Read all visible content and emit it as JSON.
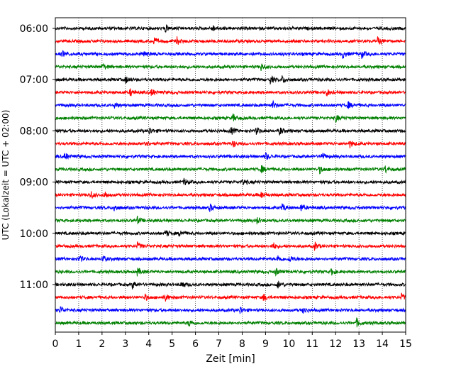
{
  "chart_data": {
    "type": "line",
    "subtype": "helicorder",
    "xlabel": "Zeit  [min]",
    "ylabel": "UTC (Lokalzeit = UTC + 02:00)",
    "xlim": [
      0,
      15
    ],
    "x_ticks": [
      0,
      1,
      2,
      3,
      4,
      5,
      6,
      7,
      8,
      9,
      10,
      11,
      12,
      13,
      14,
      15
    ],
    "x_tick_labels": [
      "0",
      "1",
      "2",
      "3",
      "4",
      "5",
      "6",
      "7",
      "8",
      "9",
      "10",
      "11",
      "12",
      "13",
      "14",
      "15"
    ],
    "x_grid": "dotted vertical",
    "trace_interval_minutes": 15,
    "row_tick_labels": [
      "06:00",
      "07:00",
      "08:00",
      "09:00",
      "10:00",
      "11:00"
    ],
    "colors": [
      "#000000",
      "#ff0000",
      "#0000ff",
      "#008000"
    ],
    "rows": [
      {
        "start": "06:00",
        "color": "#000000",
        "events_min": [
          4.7,
          6.7
        ]
      },
      {
        "start": "06:15",
        "color": "#ff0000",
        "events_min": [
          4.2,
          5.2,
          13.8
        ]
      },
      {
        "start": "06:30",
        "color": "#0000ff",
        "events_min": [
          0.3,
          3.8,
          12.3,
          13.1
        ]
      },
      {
        "start": "06:45",
        "color": "#008000",
        "events_min": [
          2.0,
          8.8
        ]
      },
      {
        "start": "07:00",
        "color": "#000000",
        "events_min": [
          3.0,
          9.2,
          9.7
        ]
      },
      {
        "start": "07:15",
        "color": "#ff0000",
        "events_min": [
          3.2,
          4.1,
          11.6
        ]
      },
      {
        "start": "07:30",
        "color": "#0000ff",
        "events_min": [
          2.5,
          9.3,
          12.5
        ]
      },
      {
        "start": "07:45",
        "color": "#008000",
        "events_min": [
          7.6,
          12.0
        ]
      },
      {
        "start": "08:00",
        "color": "#000000",
        "events_min": [
          4.0,
          7.5,
          8.6,
          9.6
        ]
      },
      {
        "start": "08:15",
        "color": "#ff0000",
        "events_min": [
          3.8,
          7.6,
          12.6
        ]
      },
      {
        "start": "08:30",
        "color": "#0000ff",
        "events_min": [
          0.4,
          9.0,
          11.4
        ]
      },
      {
        "start": "08:45",
        "color": "#008000",
        "events_min": [
          8.8,
          11.3,
          14.1
        ]
      },
      {
        "start": "09:00",
        "color": "#000000",
        "events_min": [
          5.5,
          8.0
        ]
      },
      {
        "start": "09:15",
        "color": "#ff0000",
        "events_min": [
          1.5,
          2.1,
          8.8
        ]
      },
      {
        "start": "09:30",
        "color": "#0000ff",
        "events_min": [
          2.5,
          6.6,
          9.7,
          10.5
        ]
      },
      {
        "start": "09:45",
        "color": "#008000",
        "events_min": [
          3.5,
          8.6
        ]
      },
      {
        "start": "10:00",
        "color": "#000000",
        "events_min": [
          4.7,
          5.3
        ]
      },
      {
        "start": "10:15",
        "color": "#ff0000",
        "events_min": [
          3.5,
          9.3,
          11.1
        ]
      },
      {
        "start": "10:30",
        "color": "#0000ff",
        "events_min": [
          1.0,
          2.0,
          9.5,
          10.0
        ]
      },
      {
        "start": "10:45",
        "color": "#008000",
        "events_min": [
          3.5,
          9.4,
          11.8
        ]
      },
      {
        "start": "11:00",
        "color": "#000000",
        "events_min": [
          3.3,
          5.4,
          9.5
        ]
      },
      {
        "start": "11:15",
        "color": "#ff0000",
        "events_min": [
          3.8,
          4.7,
          8.9,
          14.8
        ]
      },
      {
        "start": "11:30",
        "color": "#0000ff",
        "events_min": [
          0.2,
          7.9,
          10.6
        ]
      },
      {
        "start": "11:45",
        "color": "#008000",
        "events_min": [
          5.7,
          12.9
        ]
      }
    ]
  }
}
